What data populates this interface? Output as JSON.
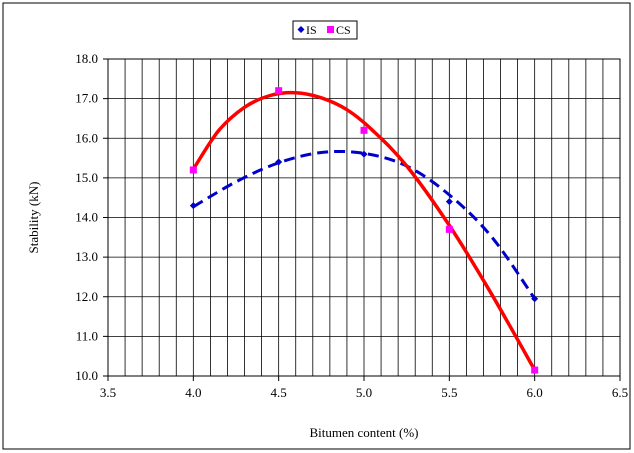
{
  "chart_data": {
    "type": "scatter",
    "xlabel": "Bitumen content (%)",
    "ylabel": "Stability  (kN)",
    "xlim": [
      3.5,
      6.5
    ],
    "ylim": [
      10.0,
      18.0
    ],
    "x_ticks": [
      "3.5",
      "4.0",
      "4.5",
      "5.0",
      "5.5",
      "6.0",
      "6.5"
    ],
    "y_ticks": [
      "10.0",
      "11.0",
      "12.0",
      "13.0",
      "14.0",
      "15.0",
      "16.0",
      "17.0",
      "18.0"
    ],
    "grid": true,
    "legend_position": "top-center",
    "series": [
      {
        "name": "IS",
        "marker": "diamond",
        "color": "#0000cc",
        "trendline": "dashed polynomial",
        "points": [
          {
            "x": 4.0,
            "y": 14.3
          },
          {
            "x": 4.5,
            "y": 15.4
          },
          {
            "x": 5.0,
            "y": 15.6
          },
          {
            "x": 5.5,
            "y": 14.4
          },
          {
            "x": 6.0,
            "y": 11.95
          }
        ],
        "fit_curve": [
          {
            "x": 4.0,
            "y": 14.27
          },
          {
            "x": 4.25,
            "y": 14.9
          },
          {
            "x": 4.5,
            "y": 15.38
          },
          {
            "x": 4.75,
            "y": 15.64
          },
          {
            "x": 5.0,
            "y": 15.62
          },
          {
            "x": 5.25,
            "y": 15.3
          },
          {
            "x": 5.5,
            "y": 14.57
          },
          {
            "x": 5.75,
            "y": 13.5
          },
          {
            "x": 6.0,
            "y": 11.95
          }
        ]
      },
      {
        "name": "CS",
        "marker": "square",
        "color": "#ff00ff",
        "trendline": "solid polynomial",
        "trend_color": "#ff0000",
        "points": [
          {
            "x": 4.0,
            "y": 15.2
          },
          {
            "x": 4.5,
            "y": 17.2
          },
          {
            "x": 5.0,
            "y": 16.2
          },
          {
            "x": 5.5,
            "y": 13.7
          },
          {
            "x": 6.0,
            "y": 10.15
          }
        ],
        "fit_curve": [
          {
            "x": 4.0,
            "y": 15.22
          },
          {
            "x": 4.15,
            "y": 16.2
          },
          {
            "x": 4.3,
            "y": 16.78
          },
          {
            "x": 4.45,
            "y": 17.08
          },
          {
            "x": 4.6,
            "y": 17.15
          },
          {
            "x": 4.75,
            "y": 17.02
          },
          {
            "x": 4.9,
            "y": 16.72
          },
          {
            "x": 5.05,
            "y": 16.2
          },
          {
            "x": 5.25,
            "y": 15.3
          },
          {
            "x": 5.5,
            "y": 13.8
          },
          {
            "x": 5.75,
            "y": 12.05
          },
          {
            "x": 6.0,
            "y": 10.15
          }
        ]
      }
    ]
  }
}
